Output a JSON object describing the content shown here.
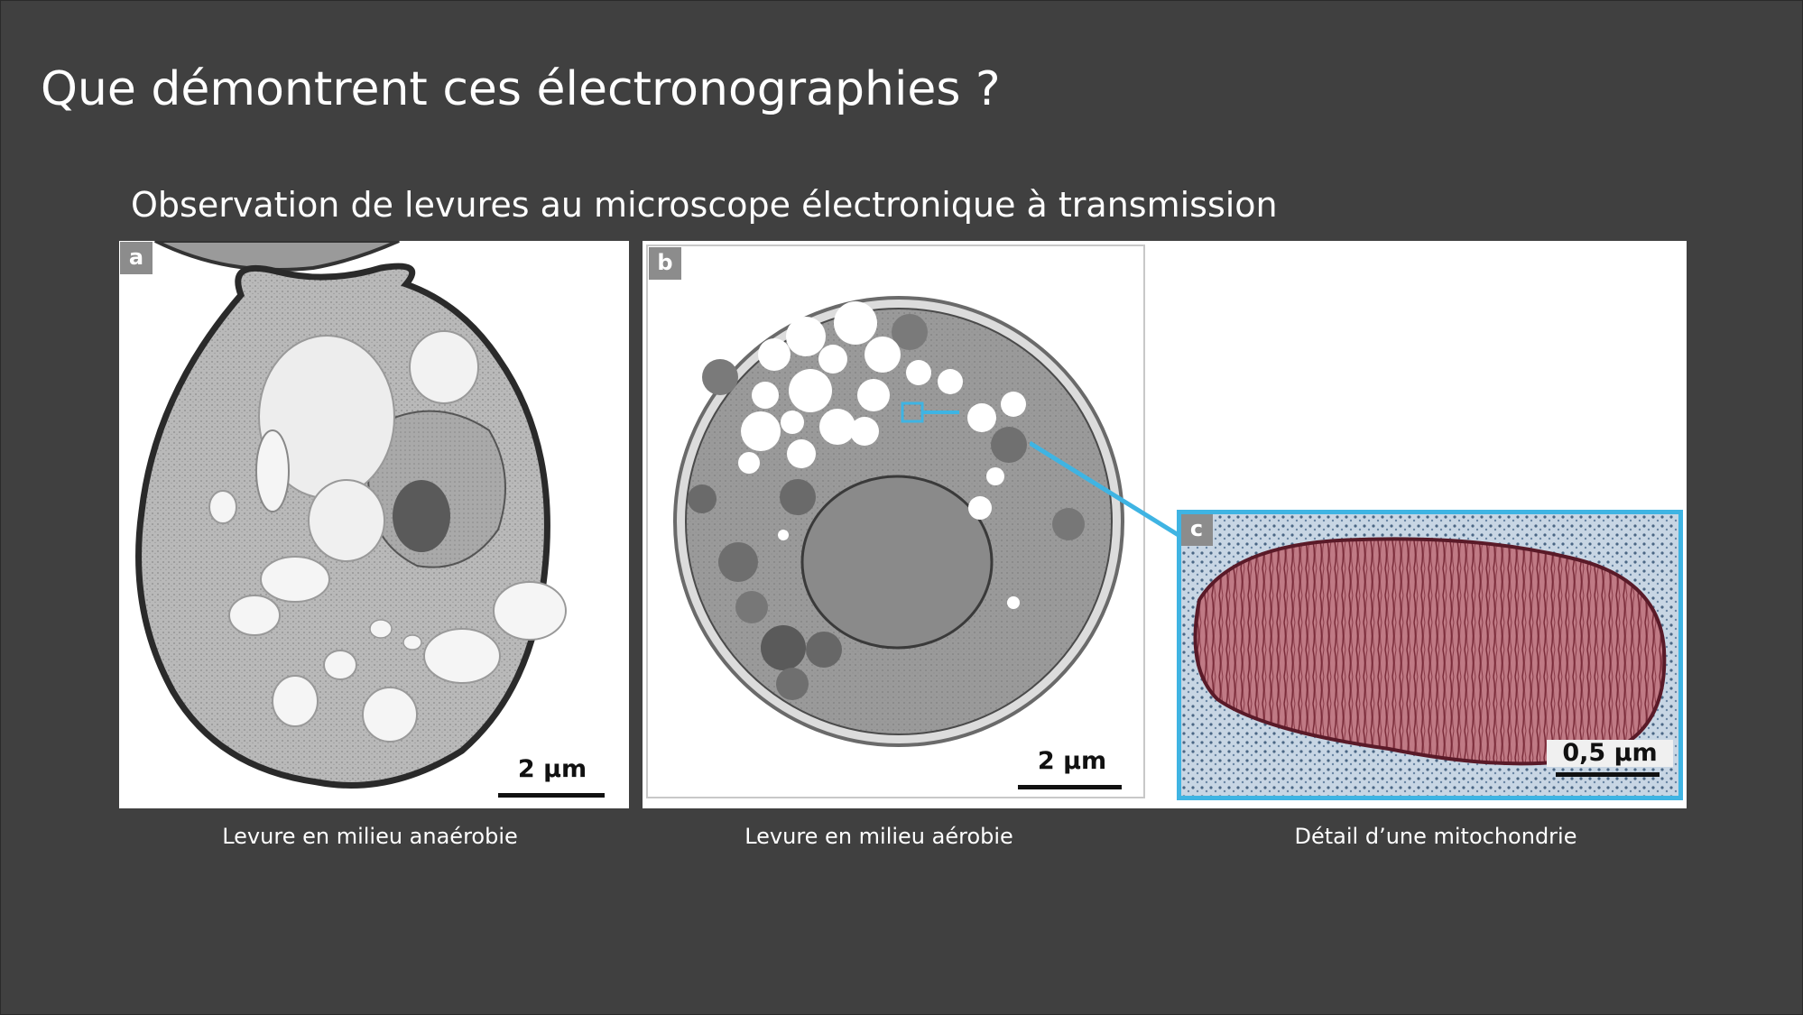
{
  "slide": {
    "title": "Que démontrent ces électronographies ?",
    "subtitle": "Observation de levures au microscope électronique à transmission"
  },
  "panels": {
    "a": {
      "letter": "a",
      "scale_label": "2 µm",
      "caption": "Levure en milieu anaérobie"
    },
    "b": {
      "letter": "b",
      "scale_label": "2 µm",
      "caption": "Levure en milieu aérobie"
    },
    "c": {
      "letter": "c",
      "scale_label": "0,5 µm",
      "caption": "Détail d’une mitochondrie"
    }
  },
  "colors": {
    "background": "#404040",
    "text": "#ffffff",
    "highlight_frame": "#3fb4e3",
    "letter_badge": "#8c8c8c",
    "mitochondria": "#b0505e"
  }
}
